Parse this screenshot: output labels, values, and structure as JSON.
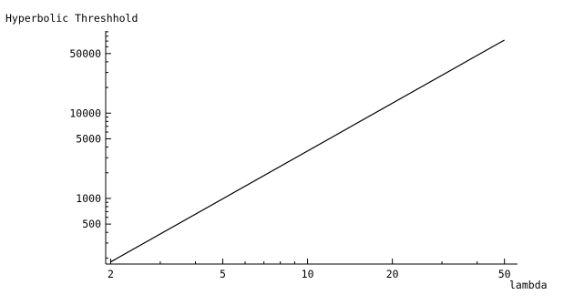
{
  "chart_data": {
    "type": "line",
    "title": "",
    "xlabel": "lambda",
    "ylabel": "Hyperbolic Threshhold",
    "x_scale": "log",
    "y_scale": "log",
    "xlim": [
      1.92,
      54
    ],
    "ylim": [
      170,
      92000
    ],
    "x_ticks": [
      2,
      5,
      10,
      20,
      50
    ],
    "x_tick_labels": [
      "2",
      "5",
      "10",
      "20",
      "50"
    ],
    "y_ticks": [
      500,
      1000,
      5000,
      10000,
      50000
    ],
    "y_tick_labels": [
      "500",
      "1000",
      "5000",
      "10000",
      "50000"
    ],
    "grid": false,
    "series": [
      {
        "x": [
          2,
          50
        ],
        "y": [
          180,
          72000
        ]
      }
    ],
    "colors": {
      "line": "#000000",
      "axis": "#000000"
    }
  }
}
